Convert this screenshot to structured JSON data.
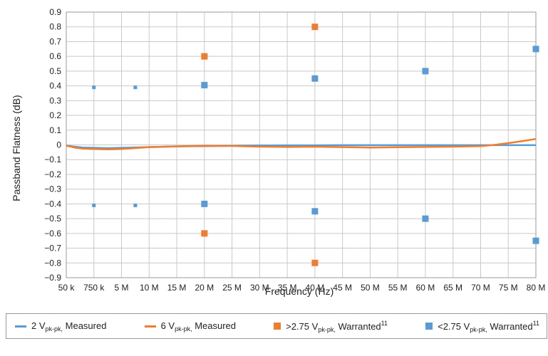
{
  "chart_data": {
    "type": "line",
    "title": "",
    "xlabel": "Frequency (Hz)",
    "ylabel": "Passband Flatness (dB)",
    "ylim": [
      -0.9,
      0.9
    ],
    "grid": true,
    "legend_position": "bottom",
    "x_ticks": [
      "50 k",
      "750 k",
      "5 M",
      "10 M",
      "15 M",
      "20 M",
      "25 M",
      "30 M",
      "35 M",
      "40 M",
      "45 M",
      "50 M",
      "55 M",
      "60 M",
      "65 M",
      "70 M",
      "75 M",
      "80 M"
    ],
    "y_ticks": [
      "0.9",
      "0.8",
      "0.7",
      "0.6",
      "0.5",
      "0.4",
      "0.3",
      "0.2",
      "0.1",
      "0",
      "−0.1",
      "−0.2",
      "−0.3",
      "−0.4",
      "−0.5",
      "−0.6",
      "−0.7",
      "−0.8",
      "−0.9"
    ],
    "series": [
      {
        "name": "2 Vpk-pk, Measured",
        "kind": "line",
        "color": "#5b9bd5",
        "x": [
          0,
          0.3,
          0.6,
          1,
          1.5,
          2,
          3,
          4,
          5,
          6,
          7,
          8,
          9,
          10,
          11,
          12,
          13,
          14,
          15,
          16,
          17
        ],
        "y": [
          -0.005,
          -0.012,
          -0.018,
          -0.02,
          -0.022,
          -0.02,
          -0.015,
          -0.01,
          -0.008,
          -0.006,
          -0.004,
          -0.003,
          -0.003,
          -0.002,
          -0.002,
          -0.002,
          -0.002,
          -0.002,
          -0.002,
          -0.002,
          -0.002
        ]
      },
      {
        "name": "6 Vpk-pk, Measured",
        "kind": "line",
        "color": "#ed7d31",
        "x": [
          0,
          0.3,
          0.6,
          1,
          1.5,
          2,
          3,
          4,
          5,
          6,
          7,
          8,
          9,
          10,
          11,
          12,
          13,
          14,
          15,
          15.5,
          16,
          16.5,
          17
        ],
        "y": [
          -0.005,
          -0.018,
          -0.025,
          -0.028,
          -0.03,
          -0.028,
          -0.015,
          -0.01,
          -0.006,
          -0.007,
          -0.012,
          -0.014,
          -0.012,
          -0.015,
          -0.018,
          -0.016,
          -0.014,
          -0.012,
          -0.008,
          0.0,
          0.012,
          0.025,
          0.04
        ]
      },
      {
        "name": ">2.75 Vpk-pk, Warranted11",
        "kind": "marker",
        "color": "#ed7d31",
        "x": [
          5,
          5,
          9,
          9
        ],
        "y": [
          0.6,
          -0.6,
          0.8,
          -0.8
        ]
      },
      {
        "name": "<2.75 Vpk-pk, Warranted11",
        "kind": "marker",
        "color": "#5b9bd5",
        "x": [
          1,
          1,
          2.5,
          2.5,
          5,
          5,
          9,
          9,
          13,
          13,
          17,
          17
        ],
        "y": [
          0.39,
          -0.41,
          0.39,
          -0.41,
          0.405,
          -0.4,
          0.45,
          -0.45,
          0.5,
          -0.5,
          0.65,
          -0.65
        ],
        "small": [
          true,
          true,
          true,
          true,
          false,
          false,
          false,
          false,
          false,
          false,
          false,
          false
        ]
      }
    ]
  },
  "legend": [
    {
      "kind": "line",
      "color": "#5b9bd5",
      "main": "2 V",
      "sub": "pk-pk,",
      "rest": " Measured",
      "sup": ""
    },
    {
      "kind": "line",
      "color": "#ed7d31",
      "main": "6 V",
      "sub": "pk-pk,",
      "rest": " Measured",
      "sup": ""
    },
    {
      "kind": "square",
      "color": "#ed7d31",
      "main": ">2.75 V",
      "sub": "pk-pk,",
      "rest": " Warranted",
      "sup": "11"
    },
    {
      "kind": "square",
      "color": "#5b9bd5",
      "main": "<2.75 V",
      "sub": "pk-pk,",
      "rest": " Warranted",
      "sup": "11"
    }
  ]
}
